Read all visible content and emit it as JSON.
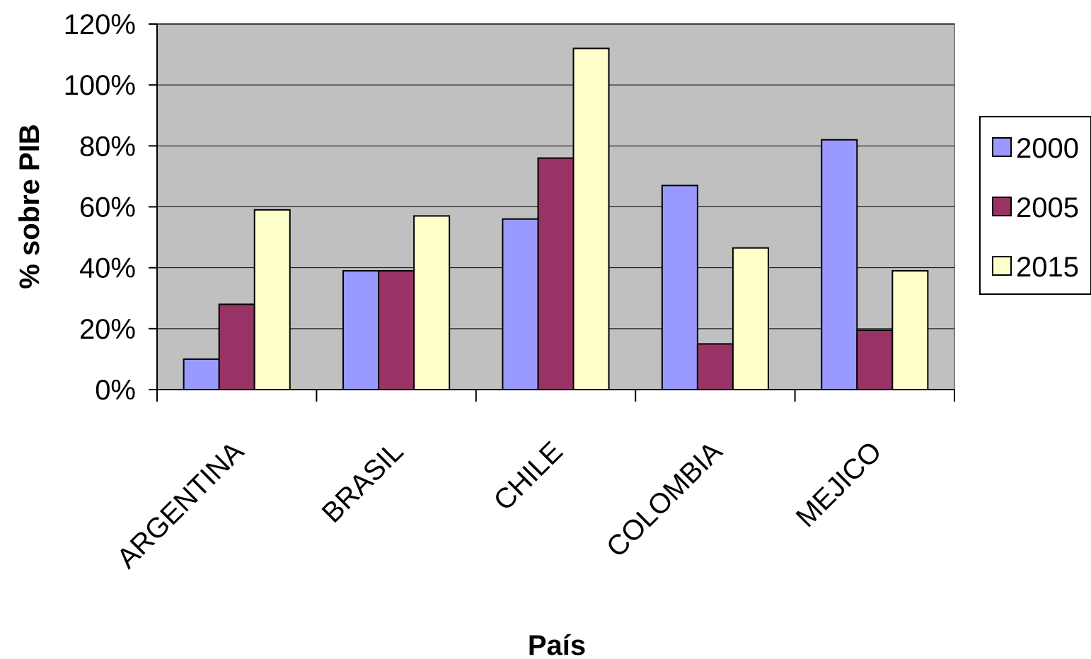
{
  "chart_data": {
    "type": "bar",
    "title": "",
    "xlabel": "País",
    "ylabel": "% sobre PIB",
    "ylim": [
      0,
      120
    ],
    "yticks": [
      0,
      20,
      40,
      60,
      80,
      100,
      120
    ],
    "ytick_suffix": "%",
    "grid": true,
    "legend_position": "right",
    "categories": [
      "ARGENTINA",
      "BRASIL",
      "CHILE",
      "COLOMBIA",
      "MEJICO"
    ],
    "series": [
      {
        "name": "2000",
        "color": "#9999FF",
        "values": [
          10,
          39,
          56,
          67,
          82
        ]
      },
      {
        "name": "2005",
        "color": "#993366",
        "values": [
          28,
          39,
          76,
          15,
          19.5
        ]
      },
      {
        "name": "2015",
        "color": "#FFFFCC",
        "values": [
          59,
          57,
          112,
          46.5,
          39
        ]
      }
    ],
    "plot_background": "#C0C0C0"
  }
}
